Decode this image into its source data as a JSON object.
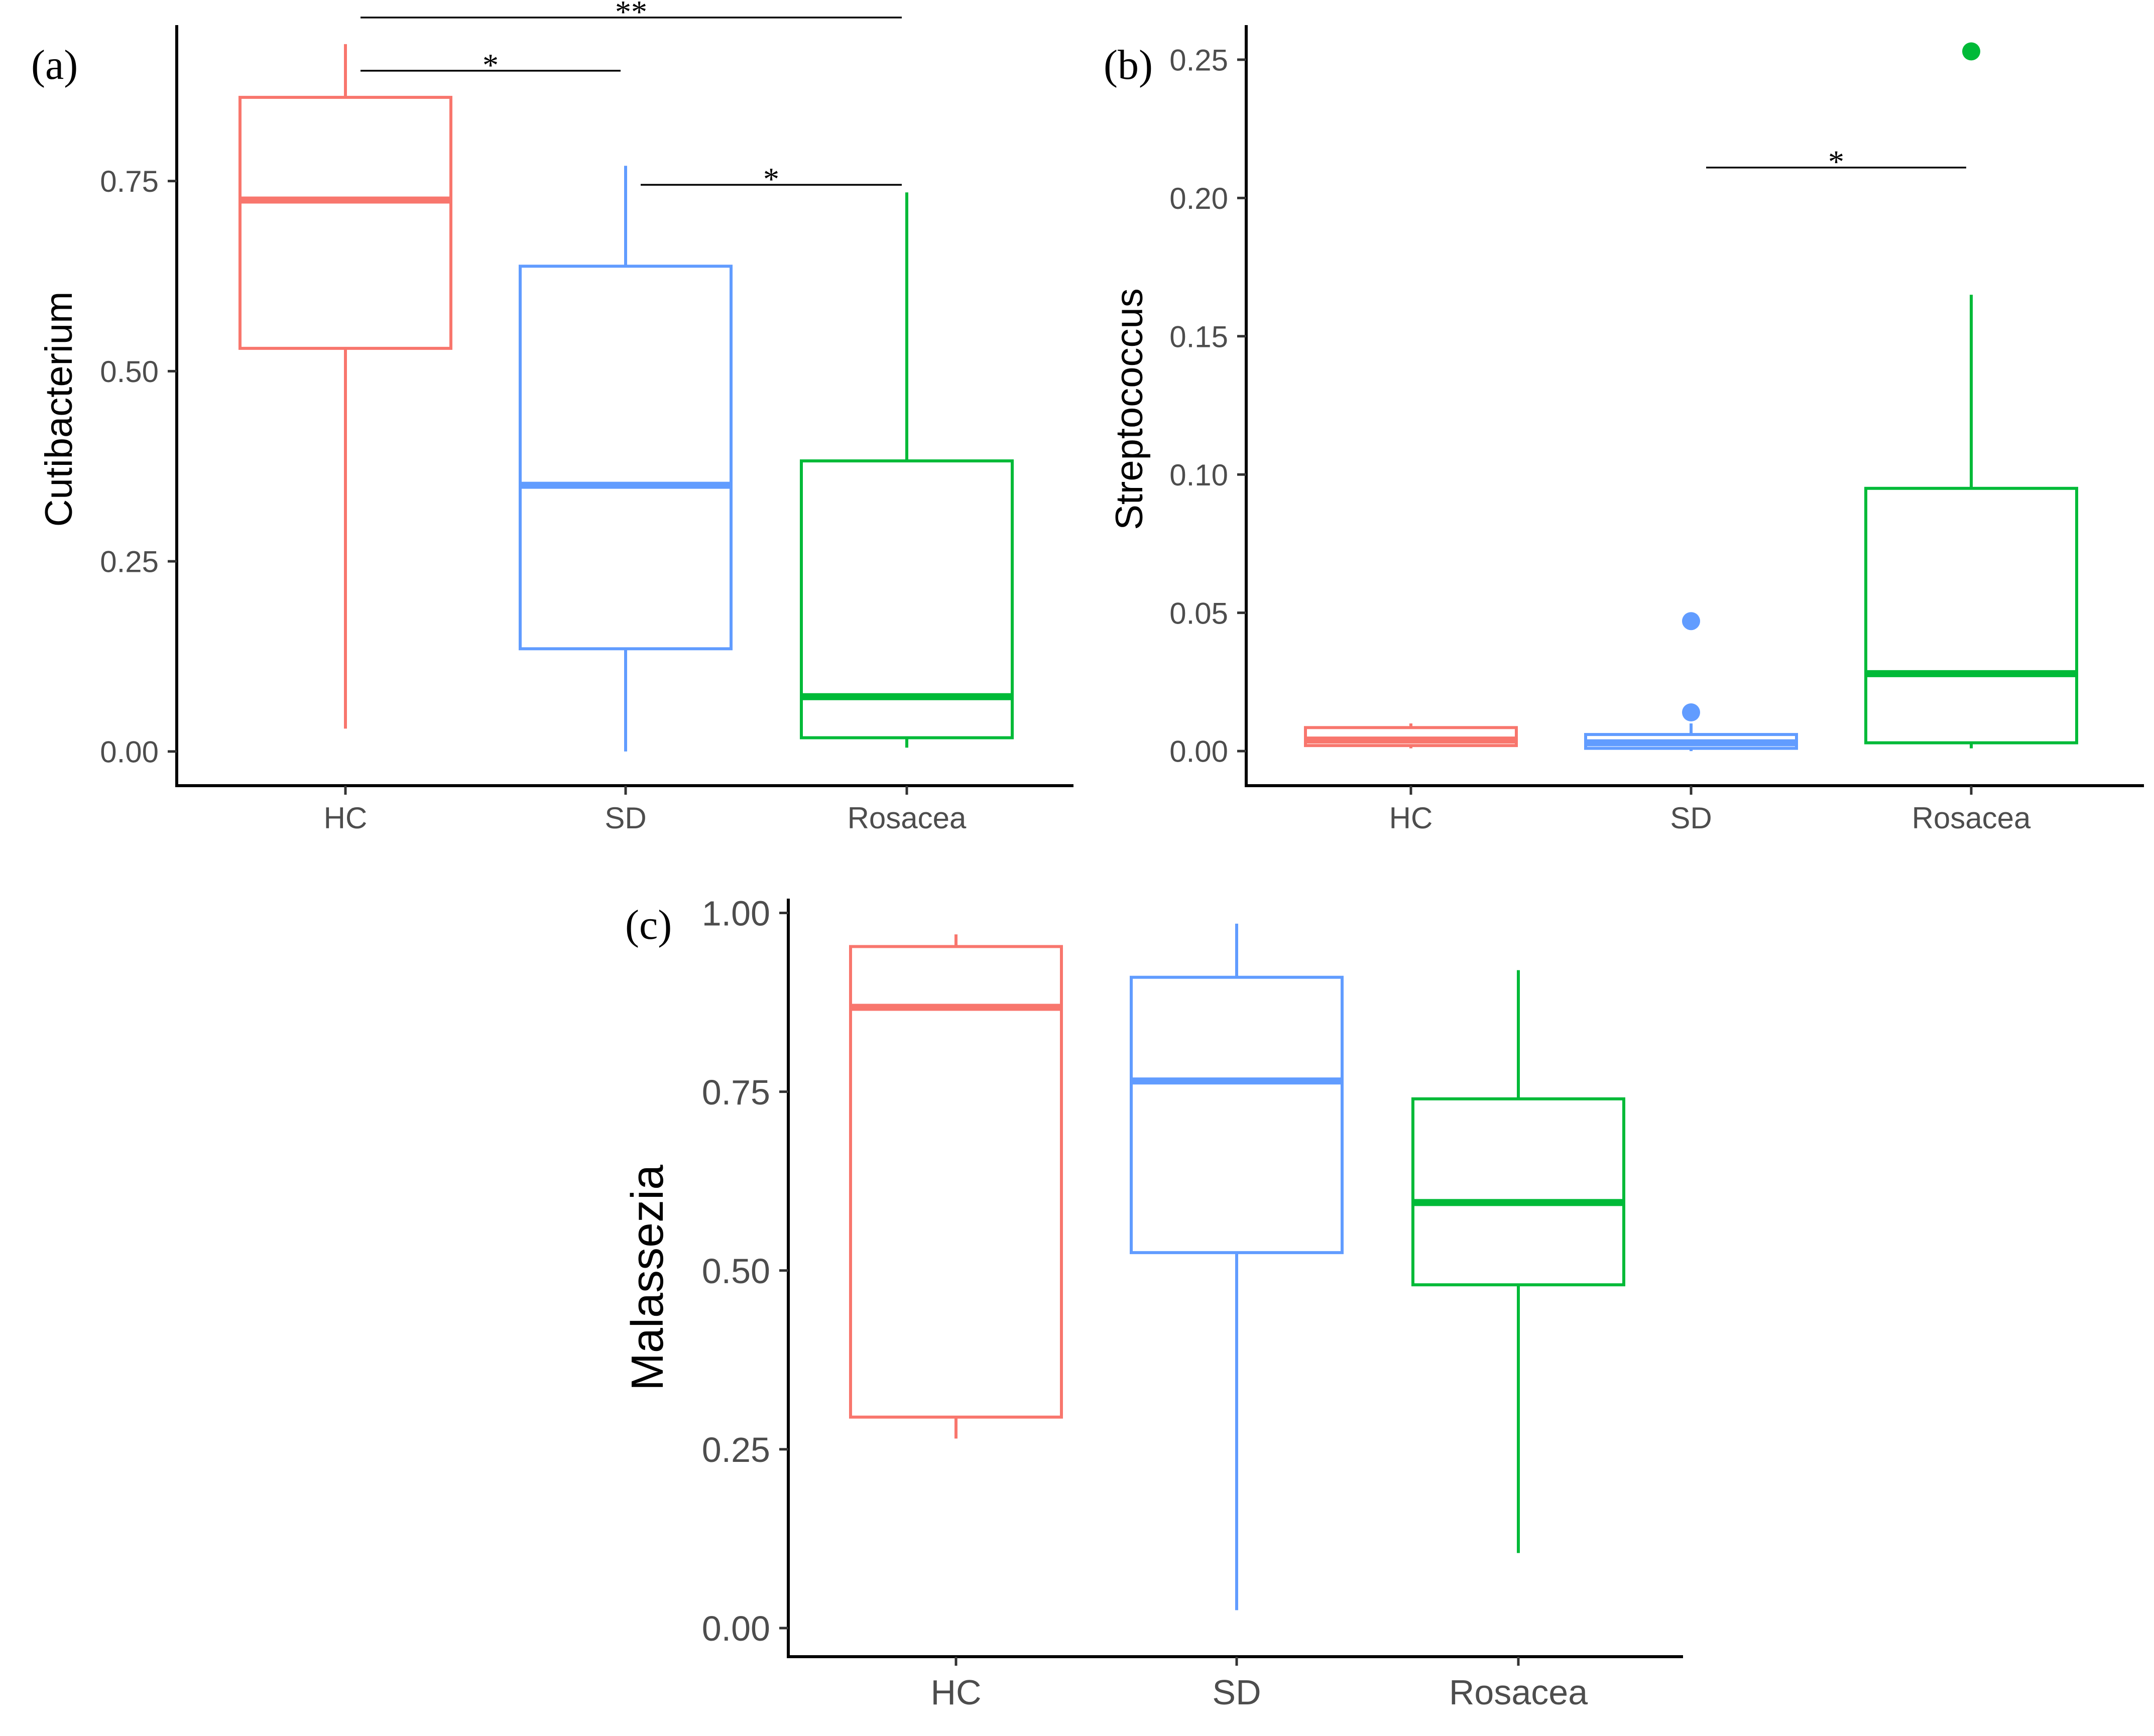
{
  "panels": [
    {
      "label": "(a)",
      "ylabel": "Cutibacterium",
      "yticks": [
        "0.00",
        "0.25",
        "0.50",
        "0.75"
      ]
    },
    {
      "label": "(b)",
      "ylabel": "Streptococcus",
      "yticks": [
        "0.00",
        "0.05",
        "0.10",
        "0.15",
        "0.20",
        "0.25"
      ]
    },
    {
      "label": "(c)",
      "ylabel": "Malassezia",
      "yticks": [
        "0.00",
        "0.25",
        "0.50",
        "0.75",
        "1.00"
      ]
    }
  ],
  "colors": {
    "HC": "#F8766D",
    "SD": "#619CFF",
    "Rosacea": "#00BA38"
  },
  "chart_data": [
    {
      "type": "box",
      "ylabel": "Cutibacterium",
      "categories": [
        "HC",
        "SD",
        "Rosacea"
      ],
      "ylim": [
        -0.045,
        0.955
      ],
      "yticks": [
        0,
        0.25,
        0.5,
        0.75
      ],
      "boxes": [
        {
          "category": "HC",
          "whisker_low": 0.03,
          "q1": 0.53,
          "median": 0.725,
          "q3": 0.86,
          "whisker_high": 0.93,
          "outliers": []
        },
        {
          "category": "SD",
          "whisker_low": 0.0,
          "q1": 0.135,
          "median": 0.35,
          "q3": 0.638,
          "whisker_high": 0.77,
          "outliers": []
        },
        {
          "category": "Rosacea",
          "whisker_low": 0.005,
          "q1": 0.018,
          "median": 0.072,
          "q3": 0.382,
          "whisker_high": 0.735,
          "outliers": []
        }
      ],
      "significance": [
        {
          "from": "HC",
          "to": "Rosacea",
          "label": "**",
          "y": 0.965
        },
        {
          "from": "HC",
          "to": "SD",
          "label": "*",
          "y": 0.895
        },
        {
          "from": "SD",
          "to": "Rosacea",
          "label": "*",
          "y": 0.745
        }
      ],
      "grid": false
    },
    {
      "type": "box",
      "ylabel": "Streptococcus",
      "categories": [
        "HC",
        "SD",
        "Rosacea"
      ],
      "ylim": [
        -0.0125,
        0.2625
      ],
      "yticks": [
        0,
        0.05,
        0.1,
        0.15,
        0.2,
        0.25
      ],
      "boxes": [
        {
          "category": "HC",
          "whisker_low": 0.001,
          "q1": 0.002,
          "median": 0.004,
          "q3": 0.0085,
          "whisker_high": 0.01,
          "outliers": []
        },
        {
          "category": "SD",
          "whisker_low": 0.0,
          "q1": 0.001,
          "median": 0.003,
          "q3": 0.006,
          "whisker_high": 0.01,
          "outliers": [
            0.047,
            0.014
          ]
        },
        {
          "category": "Rosacea",
          "whisker_low": 0.001,
          "q1": 0.003,
          "median": 0.028,
          "q3": 0.095,
          "whisker_high": 0.165,
          "outliers": [
            0.253
          ]
        }
      ],
      "significance": [
        {
          "from": "SD",
          "to": "Rosacea",
          "label": "*",
          "y": 0.211
        }
      ],
      "grid": false
    },
    {
      "type": "box",
      "ylabel": "Malassezia",
      "categories": [
        "HC",
        "SD",
        "Rosacea"
      ],
      "ylim": [
        -0.04,
        1.02
      ],
      "yticks": [
        0,
        0.25,
        0.5,
        0.75,
        1.0
      ],
      "boxes": [
        {
          "category": "HC",
          "whisker_low": 0.265,
          "q1": 0.295,
          "median": 0.868,
          "q3": 0.953,
          "whisker_high": 0.97,
          "outliers": []
        },
        {
          "category": "SD",
          "whisker_low": 0.025,
          "q1": 0.525,
          "median": 0.765,
          "q3": 0.91,
          "whisker_high": 0.985,
          "outliers": []
        },
        {
          "category": "Rosacea",
          "whisker_low": 0.105,
          "q1": 0.48,
          "median": 0.595,
          "q3": 0.74,
          "whisker_high": 0.92,
          "outliers": []
        }
      ],
      "significance": [],
      "grid": false
    }
  ]
}
